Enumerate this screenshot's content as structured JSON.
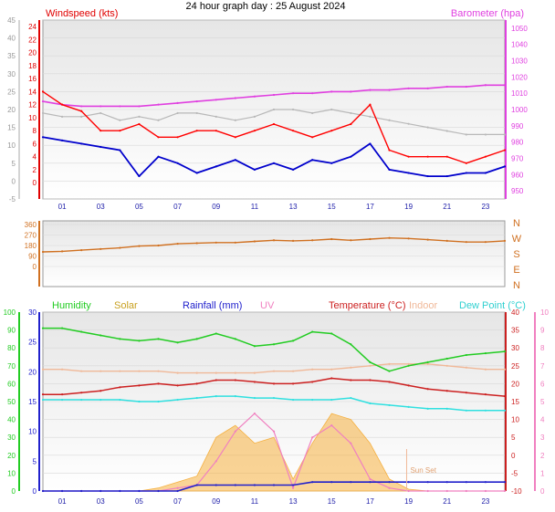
{
  "title": "24 hour graph day : 25 August 2024",
  "colors": {
    "wind": "#e00000",
    "gust": "#ff0000",
    "wind_avg": "#0000cc",
    "baro": "#e040e0",
    "gray_line": "#b8b8b8",
    "direction": "#d07020",
    "humidity": "#22cc22",
    "solar": "#f5b040",
    "rainfall": "#2020cc",
    "uv": "#f080c0",
    "temperature": "#cc2020",
    "indoor": "#f0b898",
    "dewpoint": "#30e0e0"
  },
  "chart_data": [
    {
      "type": "line",
      "title": "24 hour graph day : 25 August 2024",
      "left_label": "Windspeed (kts)",
      "right_label": "Barometer (hpa)",
      "ylim": [
        -5,
        45
      ],
      "y_ticks_gray": [
        -5,
        0,
        5,
        10,
        15,
        20,
        25,
        30,
        35,
        40,
        45
      ],
      "y_ticks_red": [
        0,
        2,
        4,
        6,
        8,
        10,
        12,
        14,
        16,
        18,
        20,
        22,
        24
      ],
      "baro_ticks": [
        950,
        960,
        970,
        980,
        990,
        1000,
        1010,
        1020,
        1030,
        1040,
        1050
      ],
      "x_ticks": [
        "01",
        "03",
        "05",
        "07",
        "09",
        "11",
        "13",
        "15",
        "17",
        "19",
        "21",
        "23"
      ],
      "x": [
        0,
        1,
        2,
        3,
        4,
        5,
        6,
        7,
        8,
        9,
        10,
        11,
        12,
        13,
        14,
        15,
        16,
        17,
        18,
        19,
        20,
        21,
        22,
        23,
        24
      ],
      "series": [
        {
          "key": "gust",
          "values": [
            14,
            12,
            11,
            8,
            8,
            9,
            7,
            7,
            8,
            8,
            7,
            8,
            9,
            8,
            7,
            8,
            9,
            12,
            5,
            4,
            4,
            4,
            3,
            4,
            5
          ]
        },
        {
          "key": "wind_avg",
          "values": [
            7,
            6.5,
            6,
            5.5,
            5,
            1,
            4,
            3,
            1.5,
            2.5,
            3.5,
            2,
            3,
            2,
            3.5,
            3,
            4,
            6,
            2,
            1.5,
            1,
            1,
            1.5,
            1.5,
            2.5
          ]
        },
        {
          "key": "baro",
          "values": [
            1005,
            1003,
            1002,
            1002,
            1002,
            1002,
            1003,
            1004,
            1005,
            1006,
            1007,
            1008,
            1009,
            1010,
            1010,
            1011,
            1011,
            1012,
            1012,
            1013,
            1013,
            1014,
            1014,
            1015,
            1015
          ]
        },
        {
          "key": "gray_line",
          "values": [
            19,
            18,
            18,
            19,
            17,
            18,
            17,
            19,
            19,
            18,
            17,
            18,
            20,
            20,
            19,
            20,
            19,
            18,
            17,
            16,
            15,
            14,
            13,
            13,
            13
          ]
        }
      ]
    },
    {
      "type": "line",
      "ylim": [
        0,
        360
      ],
      "y_ticks": [
        0,
        90,
        180,
        270,
        360
      ],
      "compass": [
        "N",
        "W",
        "S",
        "E",
        "N"
      ],
      "x": [
        0,
        1,
        2,
        3,
        4,
        5,
        6,
        7,
        8,
        9,
        10,
        11,
        12,
        13,
        14,
        15,
        16,
        17,
        18,
        19,
        20,
        21,
        22,
        23,
        24
      ],
      "series": [
        {
          "key": "direction",
          "values": [
            125,
            130,
            140,
            150,
            160,
            175,
            180,
            195,
            200,
            205,
            205,
            215,
            225,
            220,
            225,
            235,
            225,
            235,
            245,
            240,
            230,
            220,
            210,
            210,
            220
          ]
        }
      ]
    },
    {
      "type": "line",
      "labels": [
        "Humidity",
        "Solar",
        "Rainfall (mm)",
        "UV",
        "Temperature (°C)",
        "Indoor",
        "Dew Point (°C)"
      ],
      "left_ticks": [
        0,
        10,
        20,
        30,
        40,
        50,
        60,
        70,
        80,
        90,
        100
      ],
      "rain_ticks": [
        0,
        5,
        10,
        15,
        20,
        25,
        30
      ],
      "temp_ticks": [
        -10,
        -5,
        0,
        5,
        10,
        15,
        20,
        25,
        30,
        35,
        40
      ],
      "uv_ticks": [
        0,
        1,
        2,
        3,
        4,
        5,
        6,
        7,
        8,
        9,
        10
      ],
      "sunset_label": "Sun Set",
      "x": [
        0,
        1,
        2,
        3,
        4,
        5,
        6,
        7,
        8,
        9,
        10,
        11,
        12,
        13,
        14,
        15,
        16,
        17,
        18,
        19,
        20,
        21,
        22,
        23,
        24
      ],
      "series": [
        {
          "key": "humidity",
          "values": [
            91,
            91,
            89,
            87,
            85,
            84,
            85,
            83,
            85,
            88,
            85,
            81,
            82,
            84,
            89,
            88,
            82,
            72,
            67,
            70,
            72,
            74,
            76,
            77,
            78
          ]
        },
        {
          "key": "temperature",
          "values": [
            17,
            17,
            17.5,
            18,
            19,
            19.5,
            20,
            19.5,
            20,
            21,
            21,
            20.5,
            20,
            20,
            20.5,
            21.5,
            21,
            21,
            20.5,
            19.5,
            18.5,
            18,
            17.5,
            17,
            16.5
          ]
        },
        {
          "key": "indoor",
          "values": [
            24,
            24,
            23.5,
            23.5,
            23.5,
            23.5,
            23.5,
            23,
            23,
            23,
            23,
            23,
            23.5,
            23.5,
            24,
            24,
            24.5,
            25,
            25.5,
            25.5,
            25.5,
            25,
            24.5,
            24,
            24
          ]
        },
        {
          "key": "dewpoint",
          "values": [
            15.5,
            15.5,
            15.5,
            15.5,
            15.5,
            15,
            15,
            15.5,
            16,
            16.5,
            16.5,
            16,
            16,
            15.5,
            15.5,
            15.5,
            16,
            14.5,
            14,
            13.5,
            13,
            13,
            12.5,
            12.5,
            12.5
          ]
        },
        {
          "key": "rainfall",
          "values": [
            0,
            0,
            0,
            0,
            0,
            0,
            0,
            0,
            1,
            1,
            1,
            1,
            1,
            1,
            1.5,
            1.5,
            1.5,
            1.5,
            1.5,
            1.5,
            1.5,
            1.5,
            1.5,
            1.5,
            1.5
          ]
        },
        {
          "key": "solar",
          "values": [
            0,
            0,
            0,
            0,
            0,
            0,
            0.5,
            1.5,
            2.5,
            9,
            11,
            8,
            9,
            2,
            8,
            13,
            12,
            8,
            2,
            0.3,
            0,
            0,
            0,
            0,
            0
          ]
        },
        {
          "key": "uv",
          "values": [
            0,
            0,
            0,
            0,
            0,
            0,
            0,
            0.5,
            1,
            5,
            10,
            13,
            10,
            0.5,
            9,
            11,
            8,
            2,
            0.5,
            0,
            0,
            0,
            0,
            0,
            0
          ]
        }
      ]
    }
  ]
}
